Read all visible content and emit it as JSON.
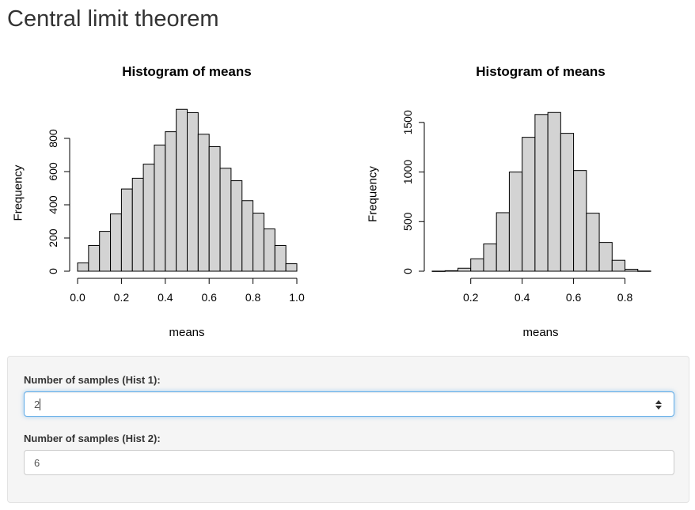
{
  "page": {
    "title": "Central limit theorem"
  },
  "chart_data": [
    {
      "type": "bar",
      "title": "Histogram of means",
      "xlabel": "means",
      "ylabel": "Frequency",
      "bin_edges": [
        0.0,
        0.05,
        0.1,
        0.15,
        0.2,
        0.25,
        0.3,
        0.35,
        0.4,
        0.45,
        0.5,
        0.55,
        0.6,
        0.65,
        0.7,
        0.75,
        0.8,
        0.85,
        0.9,
        0.95,
        1.0
      ],
      "values": [
        50,
        155,
        240,
        345,
        495,
        560,
        645,
        760,
        840,
        975,
        955,
        825,
        750,
        620,
        545,
        425,
        350,
        255,
        155,
        45
      ],
      "xlim": [
        0,
        1
      ],
      "ylim": [
        0,
        1000
      ],
      "xticks": [
        "0.0",
        "0.2",
        "0.4",
        "0.6",
        "0.8",
        "1.0"
      ],
      "xtick_values": [
        0,
        0.2,
        0.4,
        0.6,
        0.8,
        1.0
      ],
      "yticks": [
        "0",
        "200",
        "400",
        "600",
        "800"
      ],
      "ytick_values": [
        0,
        200,
        400,
        600,
        800
      ]
    },
    {
      "type": "bar",
      "title": "Histogram of means",
      "xlabel": "means",
      "ylabel": "Frequency",
      "bin_edges": [
        0.05,
        0.1,
        0.15,
        0.2,
        0.25,
        0.3,
        0.35,
        0.4,
        0.45,
        0.5,
        0.55,
        0.6,
        0.65,
        0.7,
        0.75,
        0.8,
        0.85,
        0.9
      ],
      "values": [
        1,
        5,
        30,
        125,
        275,
        590,
        1000,
        1350,
        1580,
        1600,
        1390,
        1015,
        585,
        290,
        110,
        20,
        2
      ],
      "xlim": [
        0.05,
        0.9
      ],
      "ylim": [
        0,
        1650
      ],
      "xticks": [
        "0.2",
        "0.4",
        "0.6",
        "0.8"
      ],
      "xtick_values": [
        0.2,
        0.4,
        0.6,
        0.8
      ],
      "yticks": [
        "0",
        "500",
        "1000",
        "1500"
      ],
      "ytick_values": [
        0,
        500,
        1000,
        1500
      ]
    }
  ],
  "controls": {
    "hist1": {
      "label": "Number of samples (Hist 1):",
      "value": "2"
    },
    "hist2": {
      "label": "Number of samples (Hist 2):",
      "value": "6"
    }
  },
  "colors": {
    "bar_fill": "#d3d3d3",
    "bar_stroke": "#000000",
    "focus_border": "#66afe9"
  }
}
